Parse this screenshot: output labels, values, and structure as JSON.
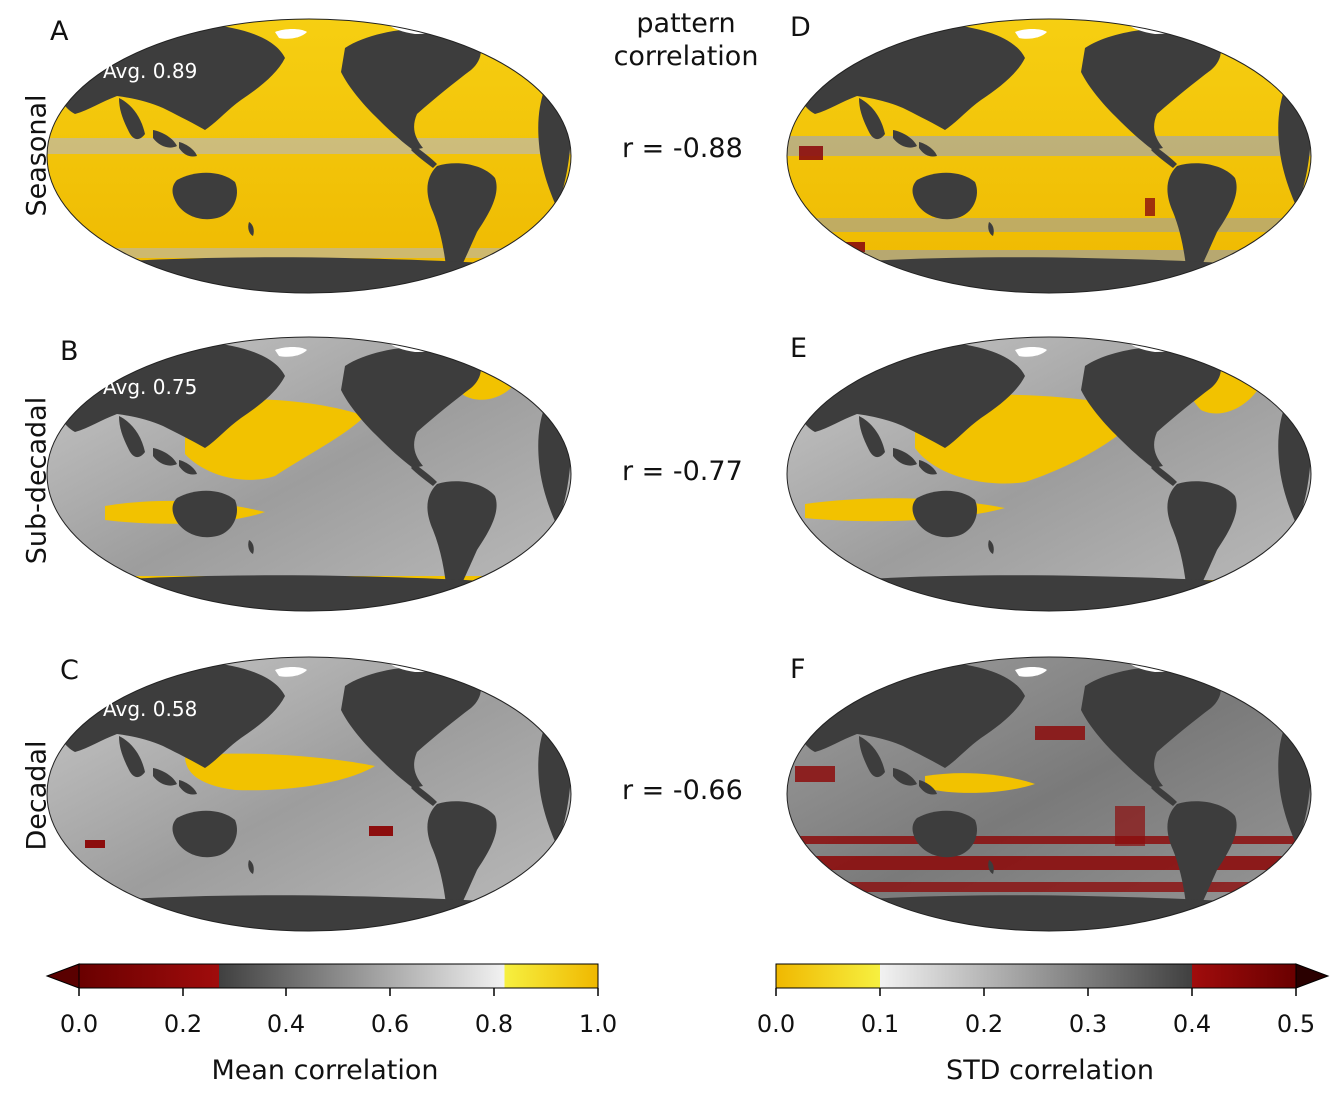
{
  "header": {
    "pattern_title_line1": "pattern",
    "pattern_title_line2": "correlation"
  },
  "rows": [
    {
      "label": "Seasonal",
      "left_panel": "A",
      "right_panel": "D",
      "avg": "Avg. 0.89",
      "r": "r = -0.88",
      "left_level": 0.89,
      "right_pattern": "mostly-yellow"
    },
    {
      "label": "Sub-decadal",
      "left_panel": "B",
      "right_panel": "E",
      "avg": "Avg. 0.75",
      "r": "r = -0.77",
      "left_level": 0.75,
      "right_pattern": "mixed-yellow-grey"
    },
    {
      "label": "Decadal",
      "left_panel": "C",
      "right_panel": "F",
      "avg": "Avg. 0.58",
      "r": "r = -0.66",
      "left_level": 0.58,
      "right_pattern": "grey-with-red"
    }
  ],
  "colorbars": {
    "mean": {
      "title": "Mean correlation",
      "ticks": [
        "0.0",
        "0.2",
        "0.4",
        "0.6",
        "0.8",
        "1.0"
      ],
      "range": [
        0.0,
        1.0
      ],
      "extend": "min",
      "colors": {
        "low": "#5a0000",
        "red": "#9b1010",
        "grey_dark": "#3a3a3a",
        "grey_light": "#f0f0f0",
        "yellow_light": "#f5f53a",
        "yellow": "#f0b800"
      }
    },
    "std": {
      "title": "STD correlation",
      "ticks": [
        "0.0",
        "0.1",
        "0.2",
        "0.3",
        "0.4",
        "0.5"
      ],
      "range": [
        0.0,
        0.5
      ],
      "extend": "max",
      "colors": {
        "yellow": "#f0b800",
        "yellow_light": "#f5f53a",
        "grey_light": "#f0f0f0",
        "grey_dark": "#3a3a3a",
        "red": "#9b1010",
        "high": "#5a0000"
      }
    }
  },
  "map_colors": {
    "land": "#3d3d3d",
    "ocean_yellow": "#f2c200",
    "ocean_grey": "#a8a8a8",
    "ocean_red": "#8c0d0d"
  }
}
